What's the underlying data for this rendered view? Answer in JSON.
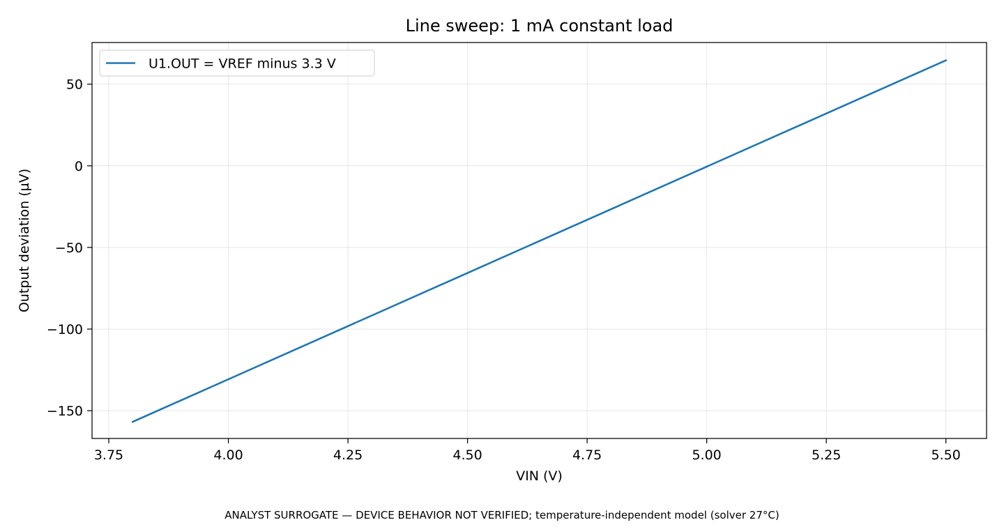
{
  "chart_data": {
    "type": "line",
    "title": "Line sweep: 1 mA constant load",
    "xlabel": "VIN (V)",
    "ylabel": "Output deviation (µV)",
    "footnote": "ANALYST SURROGATE — DEVICE BEHAVIOR NOT VERIFIED; temperature-independent model (solver 27°C)",
    "xlim": [
      3.715,
      5.585
    ],
    "ylim": [
      -167,
      75.5
    ],
    "x_ticks": [
      3.75,
      4.0,
      4.25,
      4.5,
      4.75,
      5.0,
      5.25,
      5.5
    ],
    "x_tick_labels": [
      "3.75",
      "4.00",
      "4.25",
      "4.50",
      "4.75",
      "5.00",
      "5.25",
      "5.50"
    ],
    "y_ticks": [
      -150,
      -100,
      -50,
      0,
      50
    ],
    "y_tick_labels": [
      "−150",
      "−100",
      "−50",
      "0",
      "50"
    ],
    "grid": true,
    "legend_position": "top-left",
    "series": [
      {
        "name": "U1.OUT = VREF minus 3.3 V",
        "color": "#1f77b4",
        "x": [
          3.8,
          5.5
        ],
        "y": [
          -156.8,
          64.6
        ]
      }
    ]
  }
}
